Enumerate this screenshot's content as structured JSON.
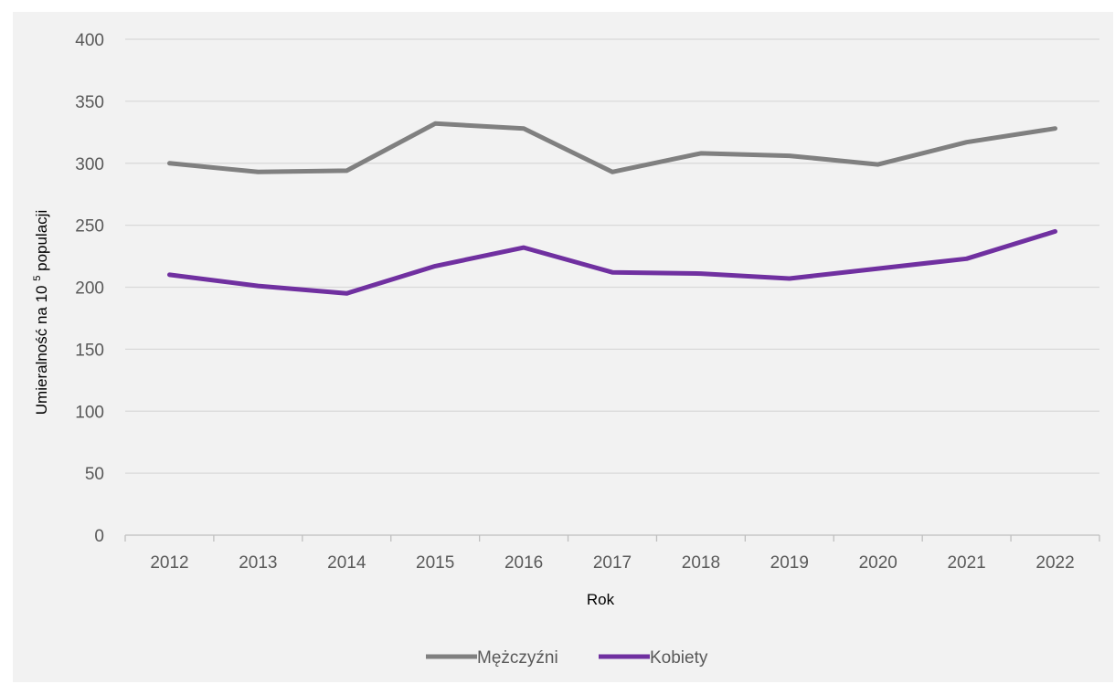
{
  "chart_data": {
    "type": "line",
    "title": "",
    "xlabel": "Rok",
    "ylabel": "Umieralność na 10⁵ populacji",
    "categories": [
      "2012",
      "2013",
      "2014",
      "2015",
      "2016",
      "2017",
      "2018",
      "2019",
      "2020",
      "2021",
      "2022"
    ],
    "ylim": [
      0,
      400
    ],
    "yticks": [
      0,
      50,
      100,
      150,
      200,
      250,
      300,
      350,
      400
    ],
    "grid": true,
    "legend_position": "bottom",
    "series": [
      {
        "name": "Mężczyźni",
        "color": "#808080",
        "values": [
          300,
          293,
          294,
          332,
          328,
          293,
          308,
          306,
          299,
          317,
          328
        ]
      },
      {
        "name": "Kobiety",
        "color": "#7030a0",
        "values": [
          210,
          201,
          195,
          217,
          232,
          212,
          211,
          207,
          215,
          223,
          245
        ]
      }
    ]
  }
}
